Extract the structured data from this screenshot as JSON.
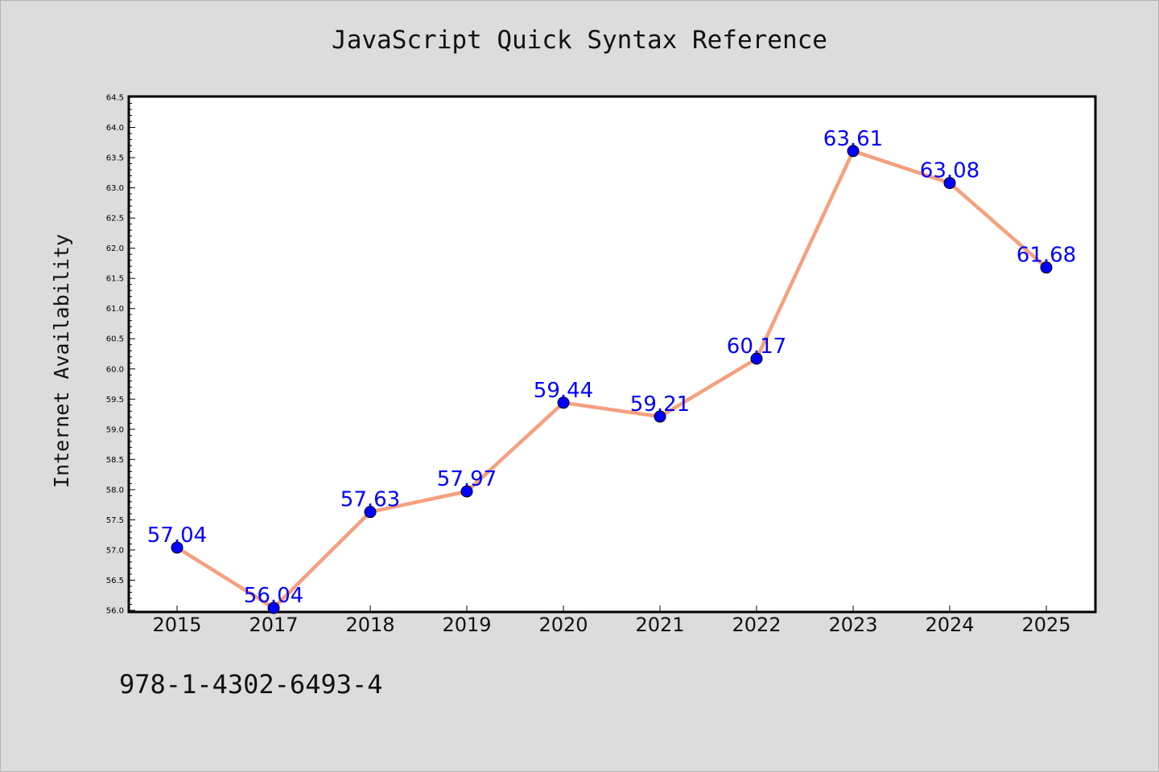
{
  "title": "JavaScript Quick Syntax Reference",
  "footer_text": "978-1-4302-6493-4",
  "colors": {
    "background": "#dcdcdc",
    "plot_background": "#ffffff",
    "line": "#f5a07e",
    "marker": "#0000ff",
    "data_label": "#0000ff"
  },
  "chart_data": {
    "type": "line",
    "categories": [
      "2015",
      "2017",
      "2018",
      "2019",
      "2020",
      "2021",
      "2022",
      "2023",
      "2024",
      "2025"
    ],
    "series": [
      {
        "values": [
          57.04,
          56.04,
          57.63,
          57.97,
          59.44,
          59.21,
          60.17,
          63.61,
          63.08,
          61.68
        ],
        "data_labels": [
          "57.04",
          "56.04",
          "57.63",
          "57.97",
          "59.44",
          "59.21",
          "60.17",
          "63.61",
          "63.08",
          "61.68"
        ]
      }
    ],
    "xlabel": "",
    "ylabel": "Internet Availability",
    "ylim": [
      56.0,
      64.5
    ],
    "yticks": [
      "56.0",
      "56.5",
      "57.0",
      "57.5",
      "58.0",
      "58.5",
      "59.0",
      "59.5",
      "60.0",
      "60.5",
      "61.0",
      "61.5",
      "62.0",
      "62.5",
      "63.0",
      "63.5",
      "64.0",
      "64.5"
    ],
    "grid": false,
    "legend": "none"
  }
}
